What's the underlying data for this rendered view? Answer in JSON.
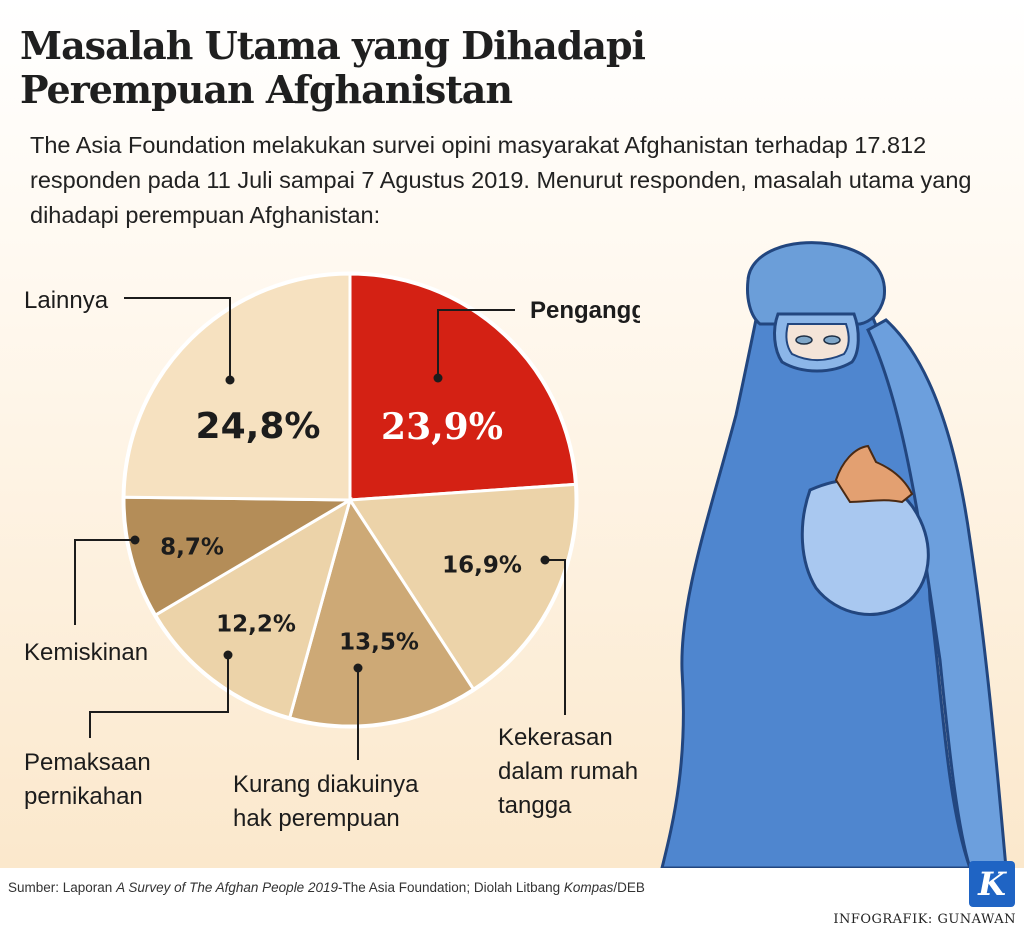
{
  "header": {
    "title_line1": "Masalah Utama yang Dihadapi",
    "title_line2": "Perempuan Afghanistan",
    "intro": "The Asia Foundation melakukan survei opini masyarakat Afghanistan terhadap 17.812 responden pada 11 Juli sampai 7 Agustus 2019. Menurut responden, masalah utama yang dihadapi perempuan Afghanistan:"
  },
  "chart_data": {
    "type": "pie",
    "slices": [
      {
        "label": [
          "Pengangguran"
        ],
        "value": 23.9,
        "value_label": "23,9%",
        "color": "#d42114"
      },
      {
        "label": [
          "Kekerasan",
          "dalam rumah",
          "tangga"
        ],
        "value": 16.9,
        "value_label": "16,9%",
        "color": "#ecd3a9"
      },
      {
        "label": [
          "Kurang diakuinya",
          "hak perempuan"
        ],
        "value": 13.5,
        "value_label": "13,5%",
        "color": "#cda976"
      },
      {
        "label": [
          "Pemaksaan",
          "pernikahan"
        ],
        "value": 12.2,
        "value_label": "12,2%",
        "color": "#ecd3a9"
      },
      {
        "label": [
          "Kemiskinan"
        ],
        "value": 8.7,
        "value_label": "8,7%",
        "color": "#b48d58"
      },
      {
        "label": [
          "Lainnya"
        ],
        "value": 24.8,
        "value_label": "24,8%",
        "color": "#f6e1c0"
      }
    ]
  },
  "footer": {
    "source_prefix": "Sumber: Laporan ",
    "source_italic1": "A Survey of The Afghan People 2019",
    "source_mid": "-The Asia Foundation; Diolah Litbang ",
    "source_italic2": "Kompas",
    "source_suffix": "/DEB",
    "credit": "INFOGRAFIK: GUNAWAN",
    "logo_letter": "K"
  }
}
